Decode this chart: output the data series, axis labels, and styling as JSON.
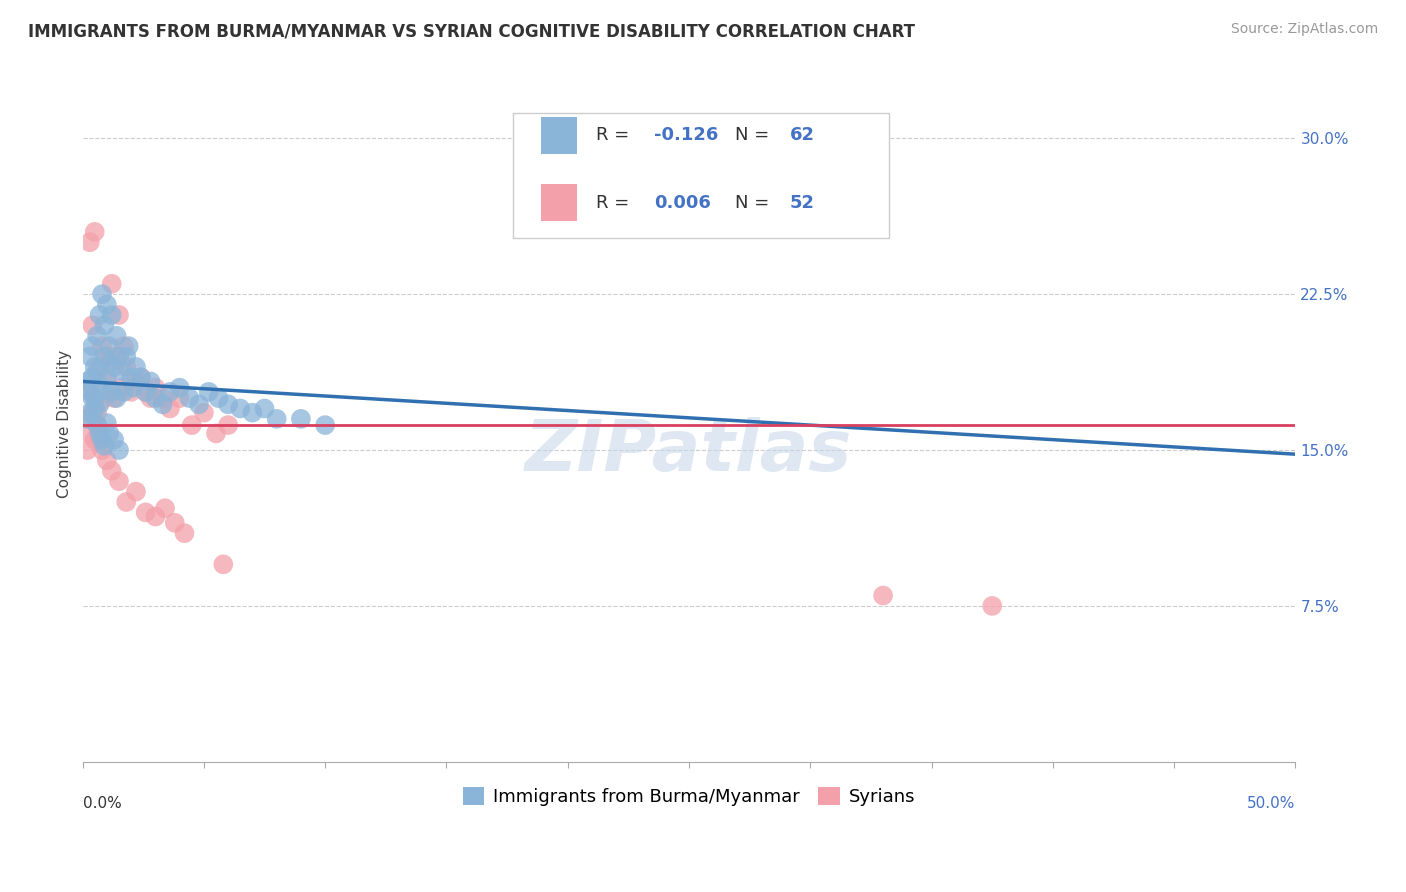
{
  "title": "IMMIGRANTS FROM BURMA/MYANMAR VS SYRIAN COGNITIVE DISABILITY CORRELATION CHART",
  "source": "Source: ZipAtlas.com",
  "ylabel": "Cognitive Disability",
  "legend_label1": "Immigrants from Burma/Myanmar",
  "legend_label2": "Syrians",
  "watermark": "ZIPatlas",
  "blue_color": "#8ab4d8",
  "pink_color": "#f4a0aa",
  "blue_line_color": "#3070b0",
  "pink_line_color": "#d94060",
  "grid_color": "#cccccc",
  "xlim": [
    0.0,
    0.5
  ],
  "ylim": [
    0.0,
    0.325
  ],
  "y_ticks": [
    0.0,
    0.075,
    0.15,
    0.225,
    0.3
  ],
  "y_tick_labels": [
    "",
    "7.5%",
    "15.0%",
    "22.5%",
    "30.0%"
  ],
  "blue_trend_x": [
    0.0,
    0.5
  ],
  "blue_trend_y": [
    0.183,
    0.148
  ],
  "pink_trend_x": [
    0.0,
    0.5
  ],
  "pink_trend_y": [
    0.162,
    0.162
  ],
  "blue_scatter_x": [
    0.002,
    0.003,
    0.003,
    0.004,
    0.004,
    0.005,
    0.005,
    0.006,
    0.006,
    0.007,
    0.007,
    0.008,
    0.008,
    0.009,
    0.009,
    0.01,
    0.01,
    0.011,
    0.011,
    0.012,
    0.012,
    0.013,
    0.014,
    0.014,
    0.015,
    0.016,
    0.017,
    0.018,
    0.019,
    0.02,
    0.021,
    0.022,
    0.024,
    0.026,
    0.028,
    0.03,
    0.033,
    0.036,
    0.04,
    0.044,
    0.048,
    0.052,
    0.056,
    0.06,
    0.065,
    0.07,
    0.075,
    0.08,
    0.09,
    0.1,
    0.002,
    0.003,
    0.004,
    0.005,
    0.006,
    0.007,
    0.008,
    0.009,
    0.01,
    0.011,
    0.013,
    0.015
  ],
  "blue_scatter_y": [
    0.183,
    0.178,
    0.195,
    0.185,
    0.2,
    0.175,
    0.19,
    0.188,
    0.205,
    0.172,
    0.215,
    0.18,
    0.225,
    0.195,
    0.21,
    0.183,
    0.22,
    0.192,
    0.2,
    0.178,
    0.215,
    0.19,
    0.205,
    0.175,
    0.195,
    0.188,
    0.178,
    0.195,
    0.2,
    0.185,
    0.18,
    0.19,
    0.185,
    0.178,
    0.183,
    0.175,
    0.172,
    0.178,
    0.18,
    0.175,
    0.172,
    0.178,
    0.175,
    0.172,
    0.17,
    0.168,
    0.17,
    0.165,
    0.165,
    0.162,
    0.165,
    0.168,
    0.175,
    0.17,
    0.162,
    0.158,
    0.155,
    0.152,
    0.163,
    0.158,
    0.155,
    0.15
  ],
  "pink_scatter_x": [
    0.002,
    0.003,
    0.003,
    0.004,
    0.005,
    0.005,
    0.006,
    0.007,
    0.008,
    0.009,
    0.01,
    0.011,
    0.012,
    0.013,
    0.014,
    0.015,
    0.016,
    0.017,
    0.018,
    0.02,
    0.022,
    0.024,
    0.026,
    0.028,
    0.03,
    0.033,
    0.036,
    0.04,
    0.045,
    0.05,
    0.055,
    0.06,
    0.002,
    0.003,
    0.004,
    0.005,
    0.006,
    0.007,
    0.008,
    0.01,
    0.012,
    0.015,
    0.018,
    0.022,
    0.026,
    0.03,
    0.034,
    0.038,
    0.042,
    0.058,
    0.33,
    0.375
  ],
  "pink_scatter_y": [
    0.165,
    0.18,
    0.25,
    0.21,
    0.175,
    0.255,
    0.168,
    0.19,
    0.2,
    0.175,
    0.185,
    0.195,
    0.23,
    0.175,
    0.195,
    0.215,
    0.18,
    0.2,
    0.19,
    0.178,
    0.183,
    0.185,
    0.178,
    0.175,
    0.18,
    0.175,
    0.17,
    0.175,
    0.162,
    0.168,
    0.158,
    0.162,
    0.15,
    0.158,
    0.168,
    0.155,
    0.162,
    0.155,
    0.15,
    0.145,
    0.14,
    0.135,
    0.125,
    0.13,
    0.12,
    0.118,
    0.122,
    0.115,
    0.11,
    0.095,
    0.08,
    0.075
  ],
  "title_fontsize": 12,
  "source_fontsize": 10,
  "axis_label_fontsize": 11,
  "tick_fontsize": 11,
  "legend_fontsize": 13
}
